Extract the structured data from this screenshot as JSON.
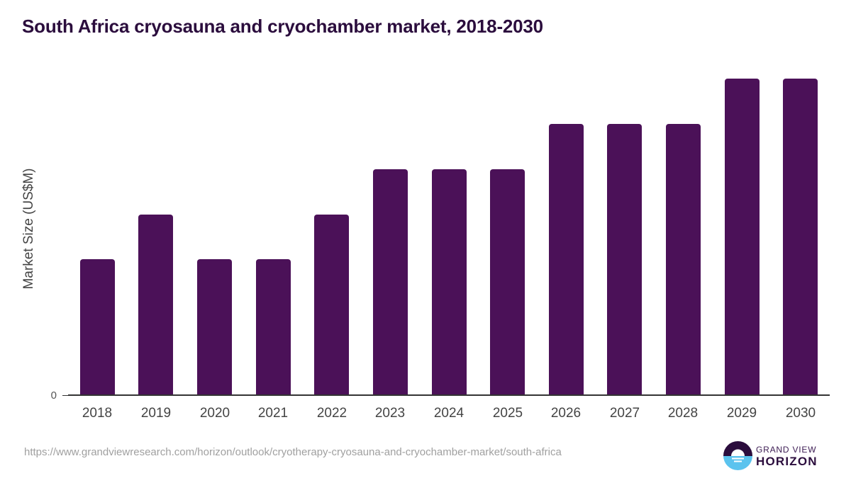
{
  "header": {
    "title": "South Africa cryosauna and cryochamber market, 2018-2030"
  },
  "axes": {
    "ylabel": "Market Size (US$M)",
    "ytick_zero": "0"
  },
  "footer": {
    "source_url": "https://www.grandviewresearch.com/horizon/outlook/cryotherapy-cryosauna-and-cryochamber-market/south-africa",
    "logo_top": "GRAND VIEW",
    "logo_bottom": "HORIZON"
  },
  "colors": {
    "bar": "#4b1158",
    "title": "#2b0d3d",
    "logo_dark": "#2b0d3d",
    "logo_light": "#5bc3ee"
  },
  "chart_data": {
    "type": "bar",
    "title": "South Africa cryosauna and cryochamber market, 2018-2030",
    "xlabel": "",
    "ylabel": "Market Size (US$M)",
    "categories": [
      "2018",
      "2019",
      "2020",
      "2021",
      "2022",
      "2023",
      "2024",
      "2025",
      "2026",
      "2027",
      "2028",
      "2029",
      "2030"
    ],
    "values": [
      0.3,
      0.4,
      0.3,
      0.3,
      0.4,
      0.5,
      0.5,
      0.5,
      0.6,
      0.6,
      0.6,
      0.7,
      0.7
    ],
    "ylim": [
      0,
      0.75
    ],
    "y_ticks_shown": [
      "0"
    ],
    "grid": false,
    "legend": null,
    "note": "Values estimated from relative bar heights; y-axis shows only the 0 tick."
  }
}
